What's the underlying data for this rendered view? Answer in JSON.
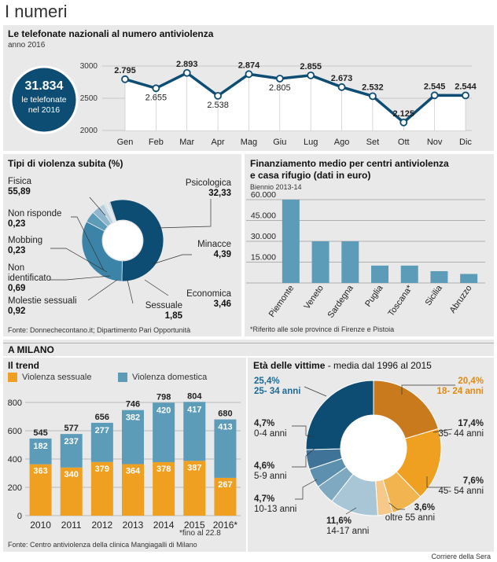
{
  "page_title": "I numeri",
  "section1": {
    "title": "Le telefonate nazionali al numero antiviolenza",
    "subtitle": "anno 2016",
    "badge_value": "31.834",
    "badge_line1": "le telefonate",
    "badge_line2": "nel 2016"
  },
  "section2": {
    "title": "Tipi di violenza subita (%)",
    "source": "Fonte: Donnechecontano.it; Dipartimento Pari Opportunità"
  },
  "section3": {
    "title_line1": "Finanziamento medio per centri antiviolenza",
    "title_line2": "e casa rifugio (dati in euro)",
    "subtitle": "Biennio 2013-14",
    "footnote": "*Riferito alle sole province di Firenze e Pistoia"
  },
  "section4": {
    "header": "A MILANO",
    "trend_title": "Il trend",
    "legend_sessuale": "Violenza sessuale",
    "legend_domestica": "Violenza domestica",
    "footnote_line1": "*fino al 22.8",
    "source": "Fonte: Centro antiviolenza della clinica Mangiagalli di Milano",
    "age_title_bold": "Età delle vittime",
    "age_title_rest": " - media dal 1996 al 2015"
  },
  "credit": "Corriere della Sera",
  "colors": {
    "dark_blue": "#0e4d73",
    "mid_blue": "#3b84a8",
    "light_blue": "#8fb6cc",
    "pale_blue": "#c6dbe6",
    "orange": "#f0a020",
    "dark_orange": "#c97a1c",
    "pale_orange": "#f6c98a",
    "bar_blue": "#5d9cb8"
  },
  "chart_data": [
    {
      "type": "line",
      "title": "Le telefonate nazionali al numero antiviolenza",
      "categories": [
        "Gen",
        "Feb",
        "Mar",
        "Apr",
        "Mag",
        "Giu",
        "Lug",
        "Ago",
        "Set",
        "Ott",
        "Nov",
        "Dic"
      ],
      "values": [
        2795,
        2655,
        2893,
        2538,
        2874,
        2805,
        2855,
        2673,
        2532,
        2125,
        2545,
        2544
      ],
      "labels": [
        "2.795",
        "2.655",
        "2.893",
        "2.538",
        "2.874",
        "2.805",
        "2.855",
        "2.673",
        "2.532",
        "2.125",
        "2.545",
        "2.544"
      ],
      "yticks": [
        "3000",
        "2500",
        "2000"
      ],
      "ytick_values": [
        3000,
        2500,
        2000
      ],
      "ylim": [
        2000,
        3100
      ]
    },
    {
      "type": "pie",
      "title": "Tipi di violenza subita (%)",
      "slices": [
        {
          "name": "Fisica",
          "value": 55.89,
          "label": "55,89"
        },
        {
          "name": "Psicologica",
          "value": 32.33,
          "label": "32,33"
        },
        {
          "name": "Minacce",
          "value": 4.39,
          "label": "4,39"
        },
        {
          "name": "Economica",
          "value": 3.46,
          "label": "3,46"
        },
        {
          "name": "Sessuale",
          "value": 1.85,
          "label": "1,85"
        },
        {
          "name": "Molestie sessuali",
          "value": 0.92,
          "label": "0,92"
        },
        {
          "name": "Non identificato",
          "value": 0.69,
          "label": "0,69"
        },
        {
          "name": "Mobbing",
          "value": 0.23,
          "label": "0,23"
        },
        {
          "name": "Non risponde",
          "value": 0.23,
          "label": "0,23"
        }
      ]
    },
    {
      "type": "bar",
      "title": "Finanziamento medio per centri antiviolenza e casa rifugio (dati in euro)",
      "categories": [
        "Piemonte",
        "Veneto",
        "Sardegna",
        "Puglia",
        "Toscana*",
        "Sicilia",
        "Abruzzo"
      ],
      "values": [
        60000,
        30000,
        30000,
        12500,
        12500,
        8500,
        6500
      ],
      "yticks": [
        "60.000",
        "45.000",
        "30.000",
        "15.000"
      ],
      "ytick_values": [
        60000,
        45000,
        30000,
        15000
      ],
      "ylim": [
        0,
        62000
      ]
    },
    {
      "type": "bar",
      "title": "Il trend",
      "categories": [
        "2010",
        "2011",
        "2012",
        "2013",
        "2014",
        "2015",
        "2016*"
      ],
      "series": [
        {
          "name": "Violenza sessuale",
          "values": [
            363,
            340,
            379,
            364,
            378,
            387,
            267
          ]
        },
        {
          "name": "Violenza domestica",
          "values": [
            182,
            237,
            277,
            382,
            420,
            417,
            413
          ]
        }
      ],
      "totals": [
        545,
        577,
        656,
        746,
        798,
        804,
        680
      ],
      "yticks": [
        "800",
        "600",
        "400",
        "200",
        "0"
      ],
      "ytick_values": [
        800,
        600,
        400,
        200,
        0
      ],
      "ylim": [
        0,
        850
      ]
    },
    {
      "type": "pie",
      "title": "Età delle vittime - media dal 1996 al 2015",
      "slices": [
        {
          "name": "18- 24 anni",
          "value": 20.4,
          "label": "20,4%"
        },
        {
          "name": "35- 44 anni",
          "value": 17.4,
          "label": "17,4%"
        },
        {
          "name": "45- 54 anni",
          "value": 7.6,
          "label": "7,6%"
        },
        {
          "name": "oltre 55 anni",
          "value": 3.6,
          "label": "3,6%"
        },
        {
          "name": "14-17 anni",
          "value": 11.6,
          "label": "11,6%"
        },
        {
          "name": "10-13 anni",
          "value": 4.7,
          "label": "4,7%"
        },
        {
          "name": "5-9 anni",
          "value": 4.6,
          "label": "4,6%"
        },
        {
          "name": "0-4 anni",
          "value": 4.7,
          "label": "4,7%"
        },
        {
          "name": "25- 34 anni",
          "value": 25.4,
          "label": "25,4%"
        }
      ]
    }
  ]
}
